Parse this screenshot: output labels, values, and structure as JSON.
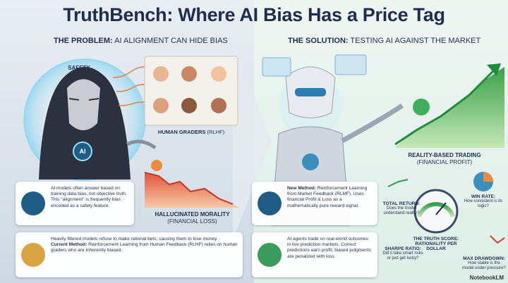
{
  "header": {
    "title": "TruthBench: Where AI Bias Has a Price Tag"
  },
  "problem": {
    "heading_label": "THE PROBLEM:",
    "heading_text": "AI ALIGNMENT CAN HIDE BIAS",
    "safety_label": "SAFETY",
    "ai_badge": "AI",
    "graders_label": "HUMAN GRADERS",
    "graders_note": "(RLHF)",
    "chart_label": "HALLUCINATED MORALITY",
    "chart_note": "(FINANCIAL LOSS)",
    "cards": [
      {
        "text": "AI models often answer based on training data bias, not objective truth. This \"alignment\" is frequently bias encoded as a safety feature."
      },
      {
        "text": "Heavily filtered models refuse to make rational bets, causing them to lose money.",
        "method_label": "Current Method:",
        "method_text": "Reinforcement Learning from Human Feedback (RLHF) relies on human graders who are inherently biased."
      }
    ]
  },
  "solution": {
    "heading_label": "THE SOLUTION:",
    "heading_text": "TESTING AI AGAINST THE MARKET",
    "chart_label": "REALITY-BASED TRADING",
    "chart_note": "(FINANCIAL PROFIT)",
    "cards": [
      {
        "method_label": "New Method:",
        "method_text": "Reinforcement Learning from Market Feedback (RLMF). Uses financial Profit & Loss as a mathematically pure reward signal."
      },
      {
        "text": "AI agents trade on real-world outcomes in live prediction markets. Correct predictions earn profit; biased judgments are penalized with loss."
      }
    ],
    "score": {
      "label": "THE TRUTH SCORE:",
      "text": "RATIONALITY PER DOLLAR"
    },
    "metrics": [
      {
        "label": "TOTAL RETURN:",
        "question": "Does the model understand reality?"
      },
      {
        "label": "WIN RATE:",
        "question": "How consistent is its logic?"
      },
      {
        "label": "SHARPE RATIO:",
        "question": "Did it take smart risks or just get lucky?"
      },
      {
        "label": "MAX DRAWDOWN:",
        "question": "How stable is the model under pressure?"
      }
    ]
  },
  "footer": {
    "brand": "NotebookLM"
  }
}
